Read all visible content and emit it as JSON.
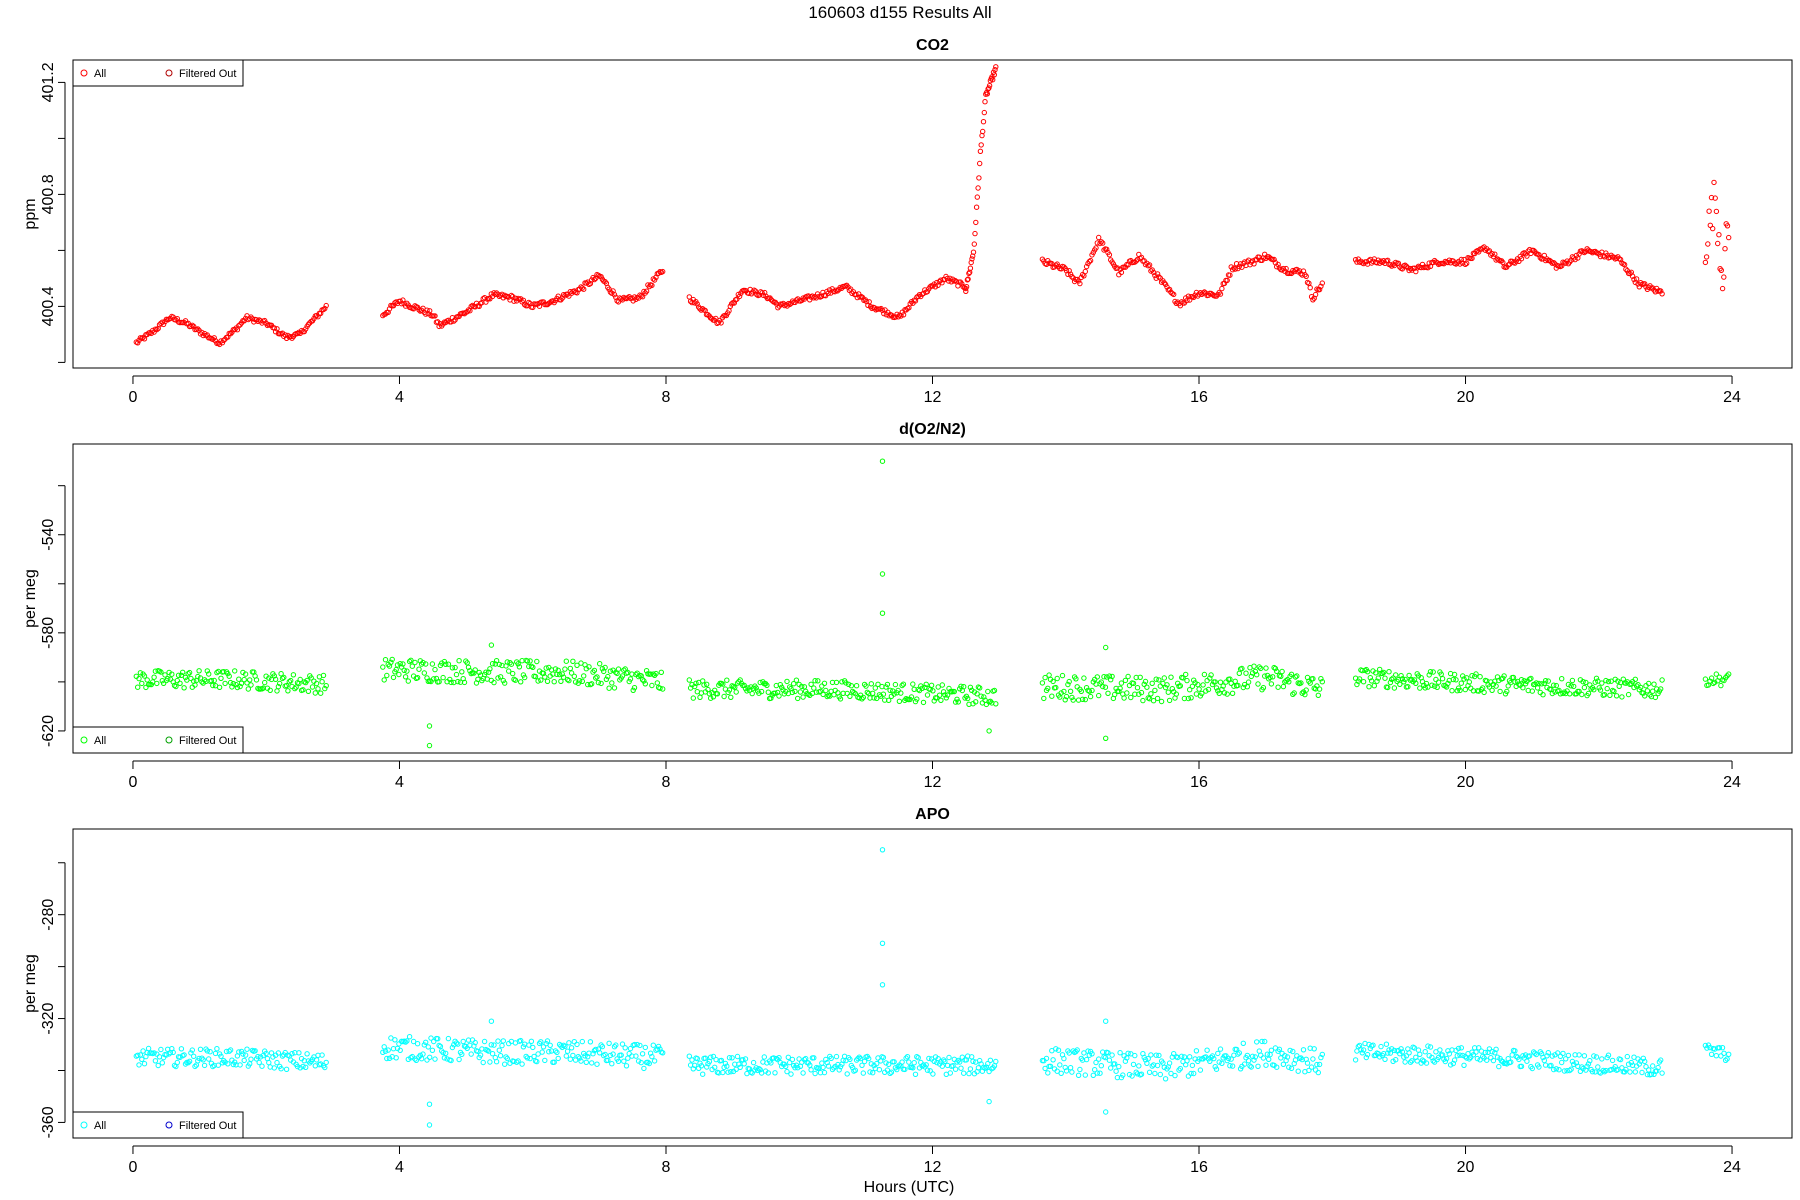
{
  "figure_title": "160603   d155   Results All",
  "xlabel": "Hours (UTC)",
  "chart_data": [
    {
      "type": "scatter",
      "title": "CO2",
      "ylabel": "ppm",
      "xlim": [
        -0.9,
        24.9
      ],
      "ylim": [
        400.18,
        401.28
      ],
      "x_ticks": [
        0,
        4,
        8,
        12,
        16,
        20,
        24
      ],
      "y_ticks": [
        400.4,
        400.8,
        401.2
      ],
      "y_minor_ticks": [
        400.2,
        400.4,
        400.6,
        400.8,
        401.0,
        401.2
      ],
      "legend": {
        "position": "top-left",
        "entries": [
          {
            "label": "All",
            "color": "#ff0000"
          },
          {
            "label": "Filtered Out",
            "color": "#b00000"
          }
        ]
      },
      "series": [
        {
          "name": "All",
          "color": "#ff0000",
          "segments": [
            {
              "x_start": 0.05,
              "x_end": 2.9,
              "n": 140,
              "knots": [
                [
                  0.05,
                  400.27
                ],
                [
                  0.3,
                  400.31
                ],
                [
                  0.55,
                  400.36
                ],
                [
                  0.8,
                  400.34
                ],
                [
                  1.0,
                  400.31
                ],
                [
                  1.3,
                  400.27
                ],
                [
                  1.55,
                  400.32
                ],
                [
                  1.7,
                  400.36
                ],
                [
                  2.0,
                  400.34
                ],
                [
                  2.3,
                  400.29
                ],
                [
                  2.5,
                  400.3
                ],
                [
                  2.7,
                  400.35
                ],
                [
                  2.9,
                  400.4
                ]
              ],
              "noise": 0.008
            },
            {
              "x_start": 3.75,
              "x_end": 7.95,
              "n": 210,
              "knots": [
                [
                  3.75,
                  400.37
                ],
                [
                  4.0,
                  400.42
                ],
                [
                  4.2,
                  400.4
                ],
                [
                  4.5,
                  400.37
                ],
                [
                  4.6,
                  400.33
                ],
                [
                  5.0,
                  400.38
                ],
                [
                  5.4,
                  400.44
                ],
                [
                  5.7,
                  400.43
                ],
                [
                  6.0,
                  400.4
                ],
                [
                  6.3,
                  400.42
                ],
                [
                  6.7,
                  400.46
                ],
                [
                  7.0,
                  400.51
                ],
                [
                  7.3,
                  400.42
                ],
                [
                  7.6,
                  400.43
                ],
                [
                  7.95,
                  400.53
                ]
              ],
              "noise": 0.01
            },
            {
              "x_start": 8.35,
              "x_end": 12.5,
              "n": 210,
              "knots": [
                [
                  8.35,
                  400.43
                ],
                [
                  8.6,
                  400.38
                ],
                [
                  8.8,
                  400.34
                ],
                [
                  9.15,
                  400.46
                ],
                [
                  9.5,
                  400.44
                ],
                [
                  9.7,
                  400.4
                ],
                [
                  10.0,
                  400.42
                ],
                [
                  10.3,
                  400.44
                ],
                [
                  10.7,
                  400.47
                ],
                [
                  11.1,
                  400.4
                ],
                [
                  11.5,
                  400.36
                ],
                [
                  11.8,
                  400.44
                ],
                [
                  12.2,
                  400.5
                ],
                [
                  12.5,
                  400.47
                ]
              ],
              "noise": 0.009
            },
            {
              "x_start": 12.5,
              "x_end": 12.95,
              "n": 40,
              "knots": [
                [
                  12.5,
                  400.46
                ],
                [
                  12.62,
                  400.6
                ],
                [
                  12.72,
                  400.95
                ],
                [
                  12.8,
                  401.15
                ],
                [
                  12.95,
                  401.25
                ]
              ],
              "noise": 0.01
            },
            {
              "x_start": 13.65,
              "x_end": 17.85,
              "n": 210,
              "knots": [
                [
                  13.65,
                  400.56
                ],
                [
                  14.0,
                  400.53
                ],
                [
                  14.2,
                  400.48
                ],
                [
                  14.5,
                  400.64
                ],
                [
                  14.8,
                  400.52
                ],
                [
                  15.1,
                  400.58
                ],
                [
                  15.4,
                  400.5
                ],
                [
                  15.7,
                  400.41
                ],
                [
                  16.0,
                  400.45
                ],
                [
                  16.3,
                  400.44
                ],
                [
                  16.5,
                  400.54
                ],
                [
                  16.8,
                  400.56
                ],
                [
                  17.0,
                  400.58
                ],
                [
                  17.3,
                  400.53
                ],
                [
                  17.6,
                  400.52
                ],
                [
                  17.7,
                  400.43
                ],
                [
                  17.85,
                  400.48
                ]
              ],
              "noise": 0.011
            },
            {
              "x_start": 18.35,
              "x_end": 22.95,
              "n": 230,
              "knots": [
                [
                  18.35,
                  400.56
                ],
                [
                  18.8,
                  400.56
                ],
                [
                  19.2,
                  400.53
                ],
                [
                  19.6,
                  400.56
                ],
                [
                  20.0,
                  400.56
                ],
                [
                  20.3,
                  400.61
                ],
                [
                  20.6,
                  400.54
                ],
                [
                  21.0,
                  400.6
                ],
                [
                  21.4,
                  400.54
                ],
                [
                  21.8,
                  400.6
                ],
                [
                  22.3,
                  400.57
                ],
                [
                  22.6,
                  400.48
                ],
                [
                  22.95,
                  400.45
                ]
              ],
              "noise": 0.01
            },
            {
              "x_start": 23.6,
              "x_end": 23.95,
              "n": 20,
              "knots": [
                [
                  23.6,
                  400.62
                ],
                [
                  23.75,
                  400.8
                ],
                [
                  23.85,
                  400.52
                ],
                [
                  23.95,
                  400.68
                ]
              ],
              "noise": 0.08
            }
          ]
        }
      ]
    },
    {
      "type": "scatter",
      "title": "d(O2/N2)",
      "ylabel": "per meg",
      "xlim": [
        -0.9,
        24.9
      ],
      "ylim": [
        -629,
        -503
      ],
      "x_ticks": [
        0,
        4,
        8,
        12,
        16,
        20,
        24
      ],
      "y_ticks": [
        -540,
        -580,
        -620
      ],
      "y_minor_ticks": [
        -520,
        -540,
        -560,
        -580,
        -600,
        -620
      ],
      "legend": {
        "position": "bottom-left",
        "entries": [
          {
            "label": "All",
            "color": "#00ff00"
          },
          {
            "label": "Filtered Out",
            "color": "#00a000"
          }
        ]
      },
      "series": [
        {
          "name": "All",
          "color": "#00ff00",
          "segments": [
            {
              "x_start": 0.05,
              "x_end": 2.9,
              "n": 140,
              "knots": [
                [
                  0.05,
                  -599
                ],
                [
                  1.5,
                  -599
                ],
                [
                  2.9,
                  -601
                ]
              ],
              "noise": 3.8
            },
            {
              "x_start": 3.75,
              "x_end": 7.95,
              "n": 210,
              "knots": [
                [
                  3.75,
                  -595
                ],
                [
                  5.5,
                  -596
                ],
                [
                  6.5,
                  -596
                ],
                [
                  7.95,
                  -600
                ]
              ],
              "noise": 4.8
            },
            {
              "x_start": 8.35,
              "x_end": 12.95,
              "n": 230,
              "knots": [
                [
                  8.35,
                  -603
                ],
                [
                  10.5,
                  -603
                ],
                [
                  12.95,
                  -606
                ]
              ],
              "noise": 3.8
            },
            {
              "x_start": 13.65,
              "x_end": 17.85,
              "n": 210,
              "knots": [
                [
                  13.65,
                  -602
                ],
                [
                  15.5,
                  -603
                ],
                [
                  17.0,
                  -598
                ],
                [
                  17.85,
                  -603
                ]
              ],
              "noise": 5.2
            },
            {
              "x_start": 18.35,
              "x_end": 22.95,
              "n": 230,
              "knots": [
                [
                  18.35,
                  -598
                ],
                [
                  20.5,
                  -601
                ],
                [
                  22.95,
                  -603
                ]
              ],
              "noise": 3.8
            },
            {
              "x_start": 23.6,
              "x_end": 23.95,
              "n": 16,
              "knots": [
                [
                  23.6,
                  -599
                ],
                [
                  23.95,
                  -599
                ]
              ],
              "noise": 2.5
            }
          ],
          "points": [
            [
              11.25,
              -510
            ],
            [
              11.25,
              -556
            ],
            [
              11.25,
              -572
            ],
            [
              4.45,
              -618
            ],
            [
              4.45,
              -626
            ],
            [
              14.6,
              -586
            ],
            [
              14.6,
              -623
            ],
            [
              5.38,
              -585
            ],
            [
              12.85,
              -620
            ]
          ]
        }
      ]
    },
    {
      "type": "scatter",
      "title": "APO",
      "ylabel": "per meg",
      "xlim": [
        -0.9,
        24.9
      ],
      "ylim": [
        -366,
        -247
      ],
      "x_ticks": [
        0,
        4,
        8,
        12,
        16,
        20,
        24
      ],
      "y_ticks": [
        -280,
        -320,
        -360
      ],
      "y_minor_ticks": [
        -260,
        -280,
        -300,
        -320,
        -340,
        -360
      ],
      "legend": {
        "position": "bottom-left",
        "entries": [
          {
            "label": "All",
            "color": "#00ffff"
          },
          {
            "label": "Filtered Out",
            "color": "#0000cd"
          }
        ]
      },
      "series": [
        {
          "name": "All",
          "color": "#00ffff",
          "segments": [
            {
              "x_start": 0.05,
              "x_end": 2.9,
              "n": 140,
              "knots": [
                [
                  0.05,
                  -335
                ],
                [
                  1.5,
                  -335
                ],
                [
                  2.9,
                  -337
                ]
              ],
              "noise": 3.5
            },
            {
              "x_start": 3.75,
              "x_end": 7.95,
              "n": 210,
              "knots": [
                [
                  3.75,
                  -331
                ],
                [
                  5.5,
                  -333
                ],
                [
                  6.5,
                  -333
                ],
                [
                  7.95,
                  -335
                ]
              ],
              "noise": 4.6
            },
            {
              "x_start": 8.35,
              "x_end": 12.95,
              "n": 230,
              "knots": [
                [
                  8.35,
                  -338
                ],
                [
                  10.5,
                  -338
                ],
                [
                  12.95,
                  -338
                ]
              ],
              "noise": 3.6
            },
            {
              "x_start": 13.65,
              "x_end": 17.85,
              "n": 210,
              "knots": [
                [
                  13.65,
                  -336
                ],
                [
                  15.5,
                  -339
                ],
                [
                  17.0,
                  -333
                ],
                [
                  17.85,
                  -337
                ]
              ],
              "noise": 5.0
            },
            {
              "x_start": 18.35,
              "x_end": 22.95,
              "n": 230,
              "knots": [
                [
                  18.35,
                  -333
                ],
                [
                  20.5,
                  -335
                ],
                [
                  22.95,
                  -339
                ]
              ],
              "noise": 3.6
            },
            {
              "x_start": 23.6,
              "x_end": 23.95,
              "n": 16,
              "knots": [
                [
                  23.6,
                  -332
                ],
                [
                  23.95,
                  -334
                ]
              ],
              "noise": 2.5
            }
          ],
          "points": [
            [
              11.25,
              -255
            ],
            [
              11.25,
              -291
            ],
            [
              11.25,
              -307
            ],
            [
              4.45,
              -353
            ],
            [
              4.45,
              -361
            ],
            [
              14.6,
              -321
            ],
            [
              14.6,
              -356
            ],
            [
              5.38,
              -321
            ],
            [
              12.85,
              -352
            ]
          ]
        }
      ]
    }
  ]
}
